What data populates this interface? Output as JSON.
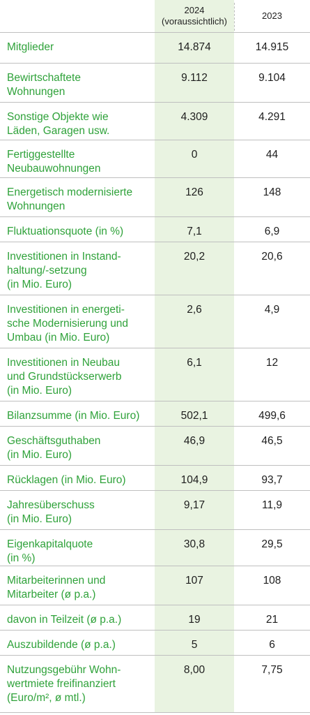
{
  "header": {
    "year_2024": "2024",
    "year_2024_note": "(voraussichtlich)",
    "year_2023": "2023"
  },
  "rows": [
    {
      "label": "Mitglieder",
      "v2024": "14.874",
      "v2023": "14.915"
    },
    {
      "label": "Bewirtschaftete\nWohnungen",
      "v2024": "9.112",
      "v2023": "9.104"
    },
    {
      "label": "Sonstige Objekte wie\nLäden, Garagen usw.",
      "v2024": "4.309",
      "v2023": "4.291"
    },
    {
      "label": "Fertiggestellte\nNeubauwohnungen",
      "v2024": "0",
      "v2023": "44"
    },
    {
      "label": "Energetisch modernisierte\nWohnungen",
      "v2024": "126",
      "v2023": "148"
    },
    {
      "label": "Fluktuationsquote (in %)",
      "v2024": "7,1",
      "v2023": "6,9"
    },
    {
      "label": "Investitionen in Instand-\nhaltung/-setzung\n(in Mio. Euro)",
      "v2024": "20,2",
      "v2023": "20,6"
    },
    {
      "label": "Investitionen in energeti-\nsche Modernisierung und\nUmbau (in Mio. Euro)",
      "v2024": "2,6",
      "v2023": "4,9"
    },
    {
      "label": "Investitionen in Neubau\nund Grundstückserwerb\n(in Mio. Euro)",
      "v2024": "6,1",
      "v2023": "12"
    },
    {
      "label": "Bilanzsumme (in Mio. Euro)",
      "v2024": "502,1",
      "v2023": "499,6"
    },
    {
      "label": "Geschäftsguthaben\n(in Mio. Euro)",
      "v2024": "46,9",
      "v2023": "46,5"
    },
    {
      "label": "Rücklagen (in Mio. Euro)",
      "v2024": "104,9",
      "v2023": "93,7"
    },
    {
      "label": "Jahresüberschuss\n(in Mio. Euro)",
      "v2024": "9,17",
      "v2023": "11,9"
    },
    {
      "label": "Eigenkapitalquote\n(in %)",
      "v2024": "30,8",
      "v2023": "29,5"
    },
    {
      "label": "Mitarbeiterinnen und\nMitarbeiter (ø p.a.)",
      "v2024": "107",
      "v2023": "108"
    },
    {
      "label": "davon in Teilzeit (ø p.a.)",
      "v2024": "19",
      "v2023": "21"
    },
    {
      "label": "Auszubildende (ø p.a.)",
      "v2024": "5",
      "v2023": "6"
    },
    {
      "label": "Nutzungsgebühr Wohn-\nwertmiete freifinanziert\n(Euro/m², ø mtl.)",
      "v2024": "8,00",
      "v2023": "7,75"
    }
  ]
}
